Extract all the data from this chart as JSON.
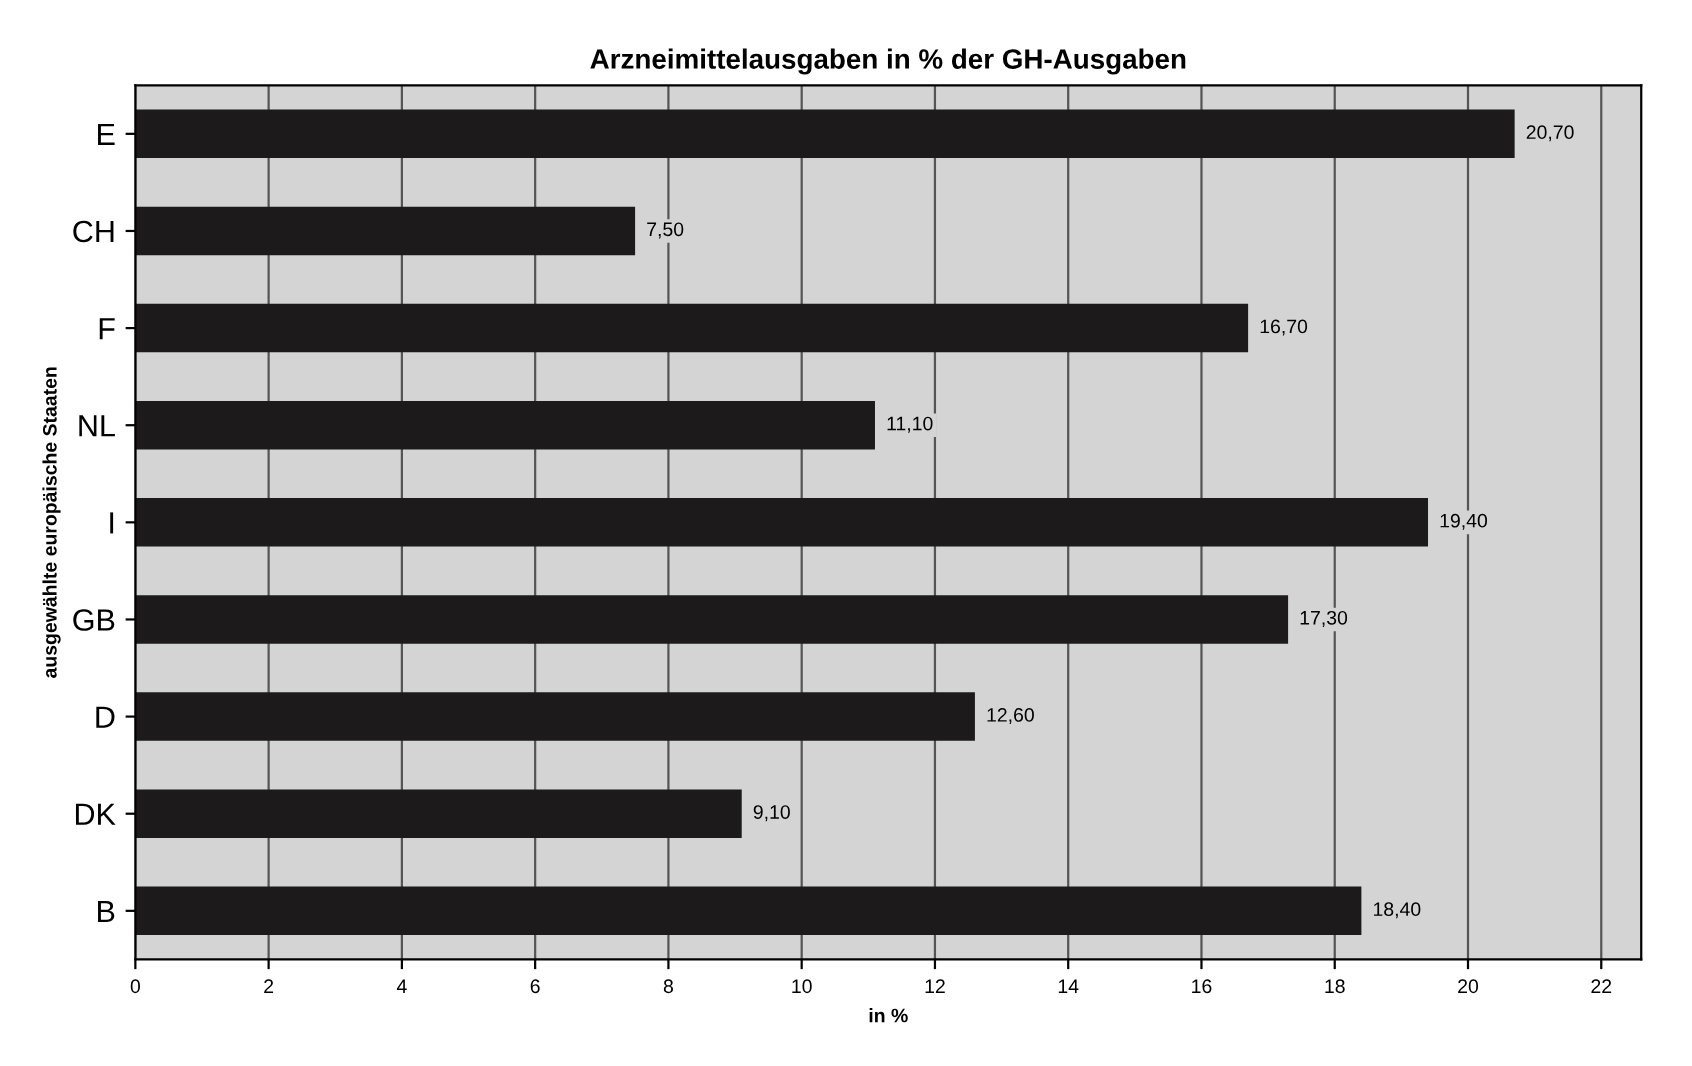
{
  "chart_data": {
    "type": "bar",
    "orientation": "horizontal",
    "title": "Arzneimittelausgaben in % der GH-Ausgaben",
    "xlabel": "in %",
    "ylabel": "ausgewählte europäische Staaten",
    "categories": [
      "E",
      "CH",
      "F",
      "NL",
      "I",
      "GB",
      "D",
      "DK",
      "B"
    ],
    "values": [
      20.7,
      7.5,
      16.7,
      11.1,
      19.4,
      17.3,
      12.6,
      9.1,
      18.4
    ],
    "value_labels": [
      "20,70",
      "7,50",
      "16,70",
      "11,10",
      "19,40",
      "17,30",
      "12,60",
      "9,10",
      "18,40"
    ],
    "color": "#1c1a1a",
    "xlim": [
      0,
      22.6
    ],
    "xticks": [
      0,
      2,
      4,
      6,
      8,
      10,
      12,
      14,
      16,
      18,
      20,
      22
    ],
    "grid": "x",
    "legend": false
  }
}
